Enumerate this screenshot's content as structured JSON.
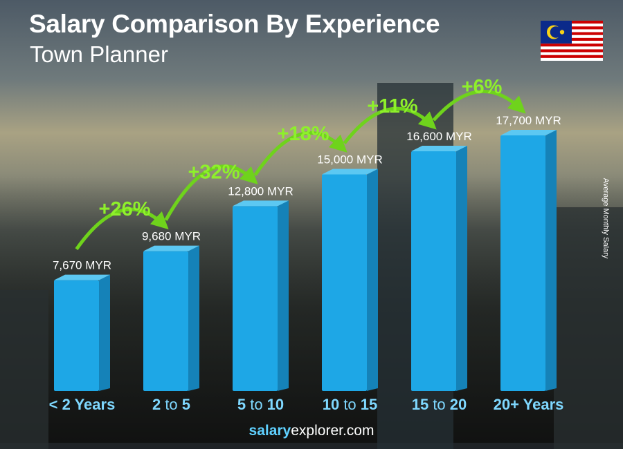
{
  "title": "Salary Comparison By Experience",
  "subtitle": "Town Planner",
  "footer": {
    "bold": "salary",
    "rest": "explorer.com"
  },
  "flag": "malaysia-flag",
  "colors": {
    "bar_front": "#1ea7e6",
    "bar_side": "#1582b8",
    "bar_top": "#5cc8f2",
    "label_blue": "#7fd8ff",
    "pct_green": "#8ef02b"
  },
  "chart_data": {
    "type": "bar",
    "title": "Salary Comparison By Experience",
    "ylabel": "Average Monthly Salary",
    "categories": [
      "< 2 Years",
      "2 to 5",
      "5 to 10",
      "10 to 15",
      "15 to 20",
      "20+ Years"
    ],
    "category_parts": [
      [
        "< 2 Years",
        "",
        ""
      ],
      [
        "2",
        " to ",
        "5"
      ],
      [
        "5",
        " to ",
        "10"
      ],
      [
        "10",
        " to ",
        "15"
      ],
      [
        "15",
        " to ",
        "20"
      ],
      [
        "20+ Years",
        "",
        ""
      ]
    ],
    "values": [
      7670,
      9680,
      12800,
      15000,
      16600,
      17700
    ],
    "value_labels": [
      "7,670 MYR",
      "9,680 MYR",
      "12,800 MYR",
      "15,000 MYR",
      "16,600 MYR",
      "17,700 MYR"
    ],
    "unit": "MYR",
    "increases": [
      "+26%",
      "+32%",
      "+18%",
      "+11%",
      "+6%"
    ]
  }
}
